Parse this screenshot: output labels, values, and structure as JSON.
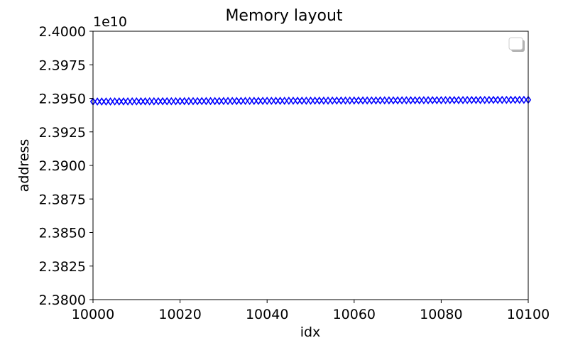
{
  "chart_data": {
    "type": "scatter",
    "title": "Memory layout",
    "xlabel": "idx",
    "ylabel": "address",
    "y_offset_label": "1e10",
    "xlim": [
      10000,
      10100
    ],
    "ylim": [
      23800000000,
      24000000000
    ],
    "x_ticks": [
      10000,
      10020,
      10040,
      10060,
      10080,
      10100
    ],
    "x_tick_labels": [
      "10000",
      "10020",
      "10040",
      "10060",
      "10080",
      "10100"
    ],
    "y_ticks": [
      23800000000,
      23825000000,
      23850000000,
      23875000000,
      23900000000,
      23925000000,
      23950000000,
      23975000000,
      24000000000
    ],
    "y_tick_labels": [
      "2.3800",
      "2.3825",
      "2.3850",
      "2.3875",
      "2.3900",
      "2.3925",
      "2.3950",
      "2.3975",
      "2.4000"
    ],
    "grid": false,
    "legend": {
      "placement": "top-right",
      "entries": []
    },
    "series": [
      {
        "marker": "thin_diamond",
        "color": "#0000ff",
        "x_start": 10000,
        "x_end": 10100,
        "x_step": 1,
        "y_start": 23947600000,
        "y_end": 23948900000
      }
    ]
  }
}
